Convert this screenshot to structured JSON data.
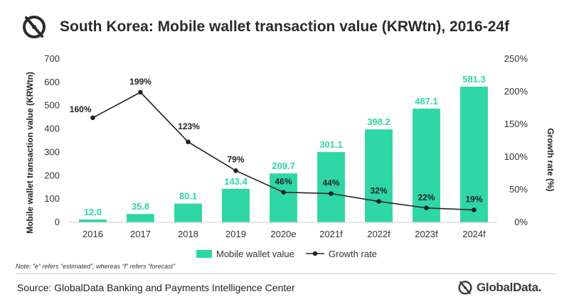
{
  "header": {
    "title": "South Korea: Mobile wallet transaction value (KRWtn), 2016-24f"
  },
  "chart_data": {
    "type": "bar",
    "categories": [
      "2016",
      "2017",
      "2018",
      "2019",
      "2020e",
      "2021f",
      "2022f",
      "2023f",
      "2024f"
    ],
    "series": [
      {
        "name": "Mobile wallet value",
        "type": "bar",
        "axis": "left",
        "values": [
          12.0,
          35.8,
          80.1,
          143.4,
          209.7,
          301.1,
          398.2,
          487.1,
          581.3
        ],
        "labels": [
          "12.0",
          "35.8",
          "80.1",
          "143.4",
          "209.7",
          "301.1",
          "398.2",
          "487.1",
          "581.3"
        ],
        "color": "#2fd6a6"
      },
      {
        "name": "Growth rate",
        "type": "line",
        "axis": "right",
        "values": [
          160,
          199,
          123,
          79,
          46,
          44,
          32,
          22,
          19
        ],
        "labels": [
          "160%",
          "199%",
          "123%",
          "79%",
          "46%",
          "44%",
          "32%",
          "22%",
          "19%"
        ],
        "color": "#222222"
      }
    ],
    "ylabel": "Mobile  wallet transaction  value (KRWtn)",
    "y2label": "Growth rate (%)",
    "ylim": [
      0,
      700
    ],
    "y2lim": [
      0,
      250
    ],
    "yticks": [
      "0",
      "100",
      "200",
      "300",
      "400",
      "500",
      "600",
      "700"
    ],
    "y2ticks": [
      "0%",
      "50%",
      "100%",
      "150%",
      "200%",
      "250%"
    ],
    "grid": false,
    "legend": "bottom"
  },
  "note": "Note: “e” refers “estimated”, whereas “f” refers “forecast”",
  "footer": {
    "source": "Source: GlobalData Banking and Payments Intelligence Center",
    "brand": "GlobalData."
  }
}
